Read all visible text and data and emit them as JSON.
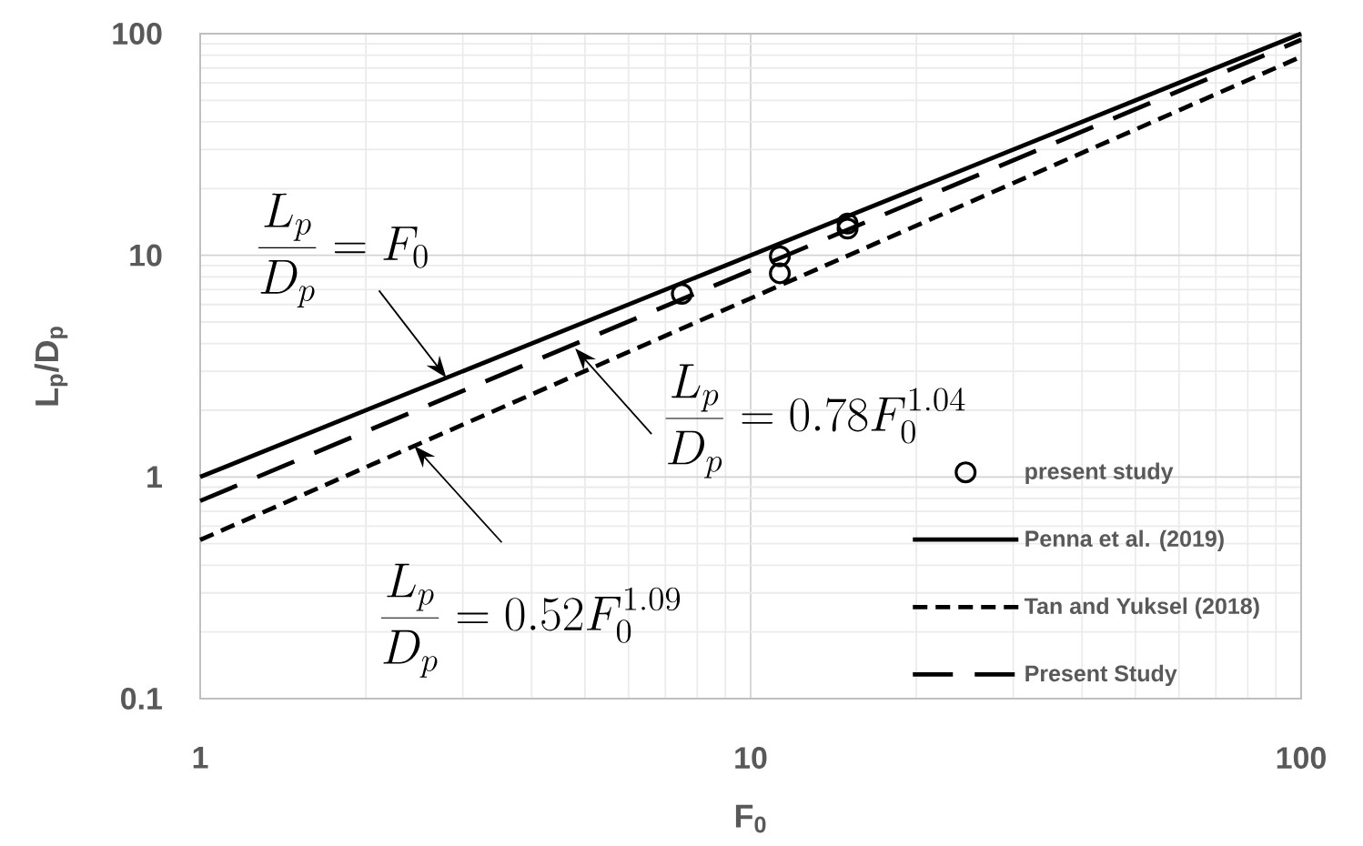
{
  "chart_data": {
    "type": "line",
    "xlabel": "F$_{0}$",
    "ylabel": "L$_{p}$/D$_{p}$",
    "log": "xy",
    "xlim": [
      1,
      100
    ],
    "ylim": [
      0.1,
      100
    ],
    "xticks": [
      1,
      10,
      100
    ],
    "yticks": [
      0.1,
      1,
      10,
      100
    ],
    "grid": true,
    "legend": "bottom right",
    "series": [
      {
        "name": "present study",
        "type": "scatter",
        "marker": "circle",
        "color": "#000000",
        "x": [
          7.5,
          11.3,
          11.3,
          15,
          15
        ],
        "values": [
          6.7,
          9.9,
          8.3,
          13.9,
          13.2
        ]
      },
      {
        "name": "Penna et al. (2019)",
        "line_style": "solid",
        "marker": "none",
        "color": "#000000",
        "x": [
          1,
          100
        ],
        "values": [
          1,
          100
        ]
      },
      {
        "name": "Tan and Yuksel (2018)",
        "line_style": "dotted",
        "marker": "none",
        "color": "#000000",
        "x": [
          1,
          100
        ],
        "values": [
          0.52,
          78.7
        ]
      },
      {
        "name": "Present Study",
        "line_style": "dashed",
        "marker": "none",
        "color": "#000000",
        "x": [
          1,
          100
        ],
        "values": [
          0.78,
          93.8
        ]
      }
    ],
    "annotations": [
      {
        "text": "\\frac{L_p}{D_p} = F_0",
        "x": 2.8,
        "y": 2.8
      },
      {
        "text": "\\frac{L_p}{D_p} = 0.78F_0^{1.04}",
        "x": 4.8,
        "y": 3.8
      },
      {
        "text": "\\frac{L_p}{D_p} = 0.52F_0^{1.09}",
        "x": 2.45,
        "y": 1.38
      }
    ]
  }
}
